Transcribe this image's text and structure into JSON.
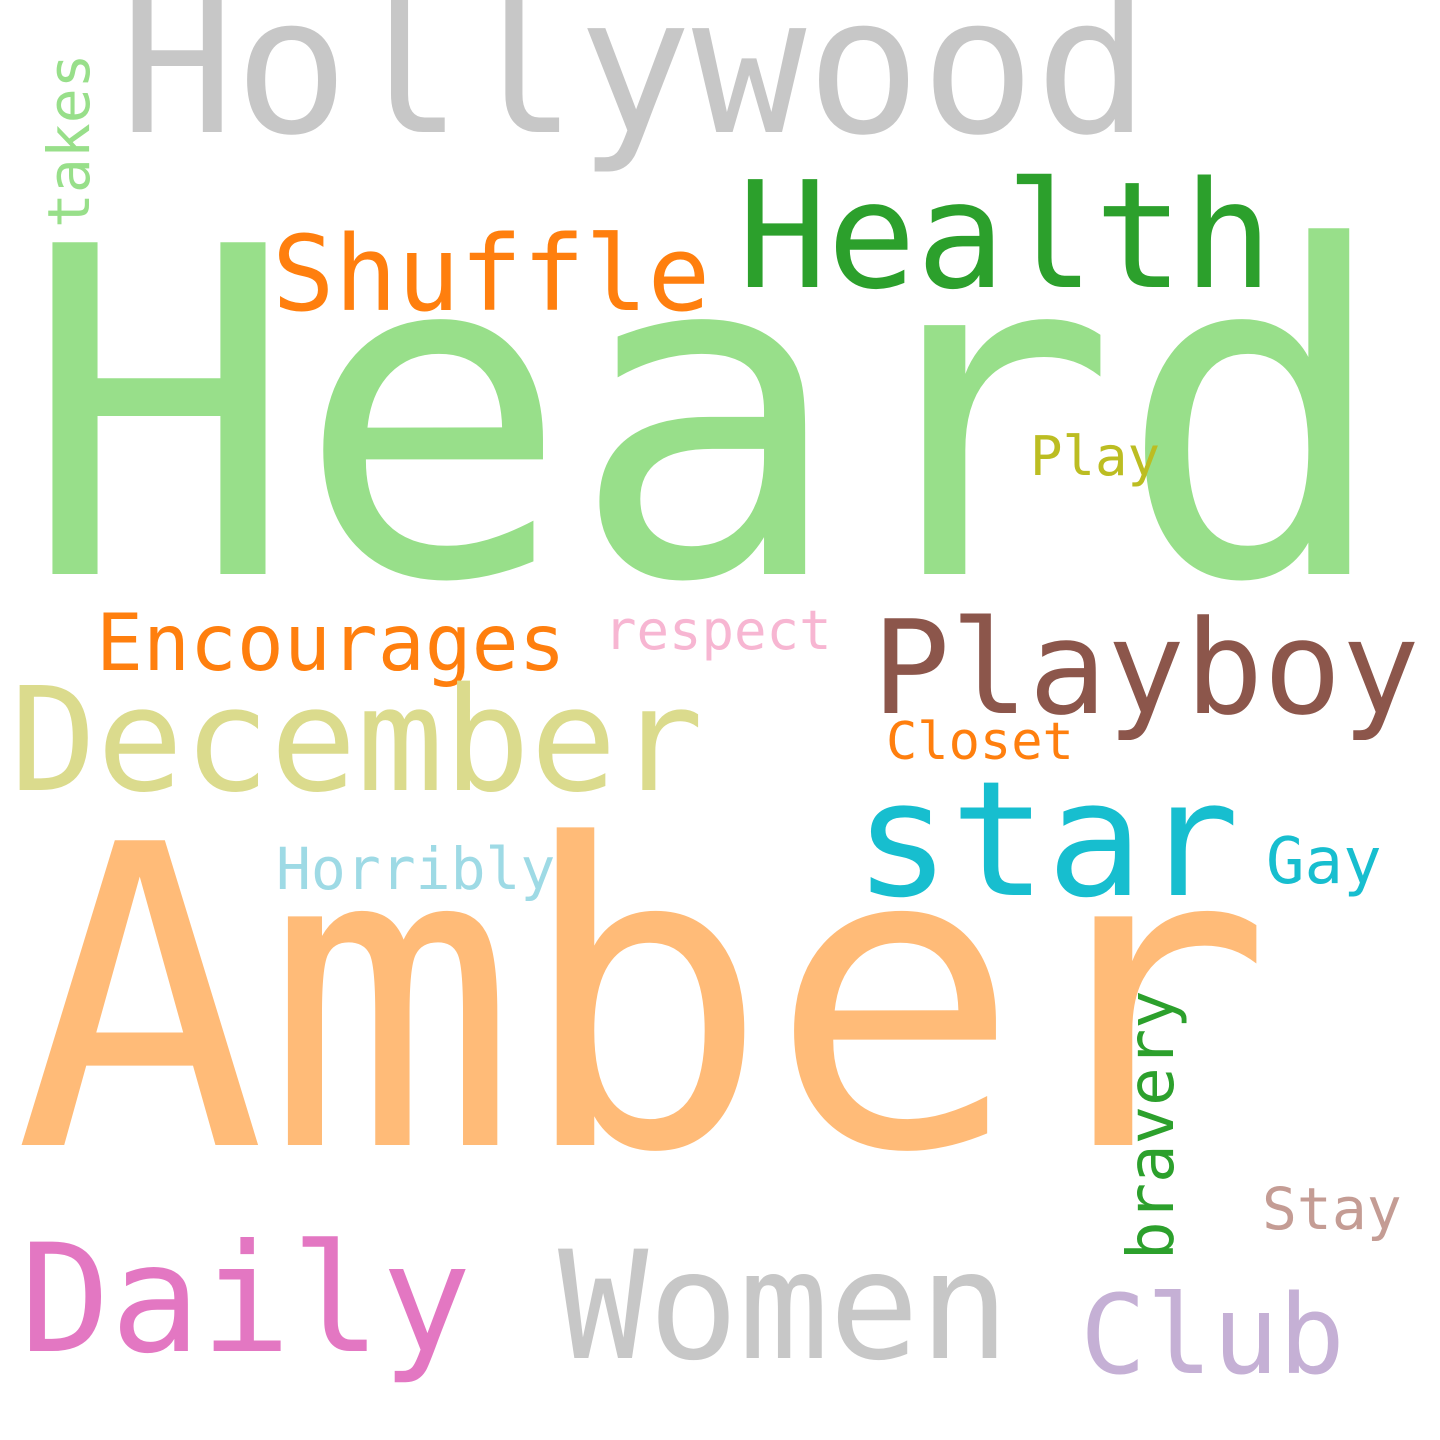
{
  "words": {
    "hollywood": {
      "text": "Hollywood",
      "color": "#c7c7c7"
    },
    "heard": {
      "text": "Heard",
      "color": "#98df8a"
    },
    "health": {
      "text": "Health",
      "color": "#2ca02c"
    },
    "shuffle": {
      "text": "Shuffle",
      "color": "#ff7f0e"
    },
    "takes": {
      "text": "takes",
      "color": "#98df8a"
    },
    "play": {
      "text": "Play",
      "color": "#bcbd22"
    },
    "encourages": {
      "text": "Encourages",
      "color": "#ff7f0e"
    },
    "respect": {
      "text": "respect",
      "color": "#f7b6d2"
    },
    "playboy": {
      "text": "Playboy",
      "color": "#8c564b"
    },
    "december": {
      "text": "December",
      "color": "#dbdb8d"
    },
    "closet": {
      "text": "Closet",
      "color": "#ff7f0e"
    },
    "star": {
      "text": "star",
      "color": "#17becf"
    },
    "gay": {
      "text": "Gay",
      "color": "#17becf"
    },
    "horribly": {
      "text": "Horribly",
      "color": "#9edae5"
    },
    "amber": {
      "text": "Amber",
      "color": "#ffbb78"
    },
    "bravery": {
      "text": "bravery",
      "color": "#2ca02c"
    },
    "stay": {
      "text": "Stay",
      "color": "#c49c94"
    },
    "daily": {
      "text": "Daily",
      "color": "#e377c2"
    },
    "women": {
      "text": "Women",
      "color": "#c7c7c7"
    },
    "club": {
      "text": "Club",
      "color": "#c5b0d5"
    }
  }
}
